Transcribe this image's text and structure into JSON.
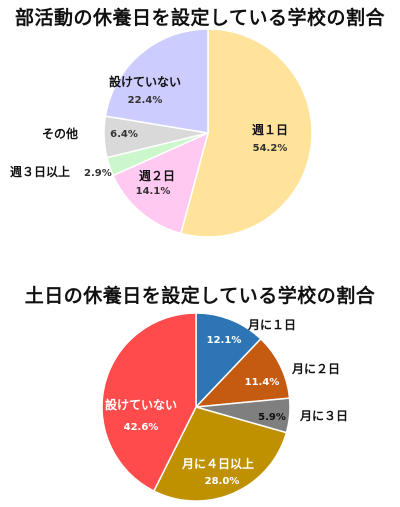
{
  "chart_data": [
    {
      "type": "pie",
      "title": "部活動の休養日を設定している学校の割合",
      "slices": [
        {
          "label": "週１日",
          "value": 54.2,
          "pct_label": "54.2%",
          "color": "#FFE39A"
        },
        {
          "label": "週２日",
          "value": 14.1,
          "pct_label": "14.1%",
          "color": "#FFC9F2"
        },
        {
          "label": "週３日以上",
          "value": 2.9,
          "pct_label": "2.9%",
          "color": "#CCF7CC"
        },
        {
          "label": "その他",
          "value": 6.4,
          "pct_label": "6.4%",
          "color": "#D9D9D9"
        },
        {
          "label": "設けていない",
          "value": 22.4,
          "pct_label": "22.4%",
          "color": "#CCCCFF"
        }
      ]
    },
    {
      "type": "pie",
      "title": "土日の休養日を設定している学校の割合",
      "slices": [
        {
          "label": "月に１日",
          "value": 12.1,
          "pct_label": "12.1%",
          "color": "#2E75B6"
        },
        {
          "label": "月に２日",
          "value": 11.4,
          "pct_label": "11.4%",
          "color": "#C55A11"
        },
        {
          "label": "月に３日",
          "value": 5.9,
          "pct_label": "5.9%",
          "color": "#7F7F7F"
        },
        {
          "label": "月に４日以上",
          "value": 28.0,
          "pct_label": "28.0%",
          "color": "#BF9000"
        },
        {
          "label": "設けていない",
          "value": 42.6,
          "pct_label": "42.6%",
          "color": "#FF4B4B"
        }
      ]
    }
  ]
}
